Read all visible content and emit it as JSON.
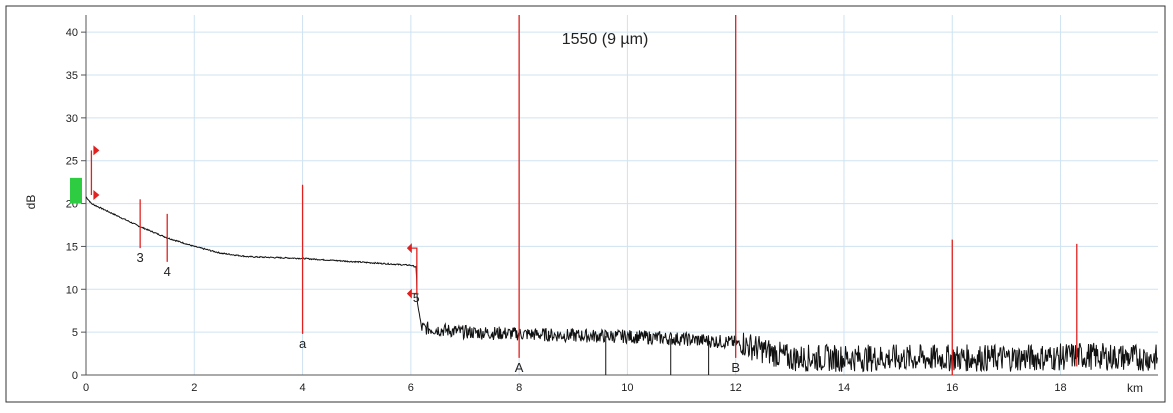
{
  "chart_data": {
    "type": "line",
    "title": "1550 (9 µm)",
    "xlabel": "",
    "x_unit": "km",
    "ylabel": "dB",
    "xlim": [
      0,
      19.8
    ],
    "ylim": [
      0,
      42
    ],
    "grid": true,
    "x_ticks": [
      0,
      2,
      4,
      6,
      8,
      10,
      12,
      14,
      16,
      18
    ],
    "y_ticks": [
      0,
      5,
      10,
      15,
      20,
      25,
      30,
      35,
      40
    ],
    "colors": {
      "trace": "#111111",
      "marker": "#e0211f",
      "grid": "#cfe3f1",
      "launch": "#2ecc40"
    },
    "series": [
      {
        "values_note": "",
        "x": [
          0.0,
          0.1,
          0.5,
          1.0,
          1.5,
          2.0,
          2.5,
          3.0,
          4.0,
          5.0,
          6.0,
          6.1,
          6.12,
          6.2,
          7.0,
          8.0,
          9.0,
          10.0,
          11.0,
          12.0,
          12.2,
          13.0,
          14.0,
          15.0,
          16.0,
          17.0,
          18.0,
          18.3,
          19.0,
          19.8
        ],
        "y": [
          20.8,
          20.0,
          18.8,
          17.3,
          16.0,
          15.0,
          14.2,
          13.8,
          13.6,
          13.2,
          12.8,
          12.6,
          8.5,
          5.5,
          5.0,
          4.8,
          4.6,
          4.5,
          4.2,
          3.8,
          3.0,
          1.5,
          1.5,
          1.5,
          1.5,
          1.5,
          1.6,
          1.8,
          1.6,
          1.5
        ]
      }
    ],
    "events": [
      {
        "label": "3",
        "x": 1.0,
        "top": 20.5,
        "bottom": 14.8
      },
      {
        "label": "4",
        "x": 1.5,
        "top": 18.8,
        "bottom": 13.2
      },
      {
        "label": "a",
        "x": 4.0,
        "top": 22.2,
        "bottom": 4.8
      },
      {
        "label": "A",
        "x": 8.0,
        "top": 42.0,
        "bottom": 2.0
      },
      {
        "label": "B",
        "x": 12.0,
        "top": 42.0,
        "bottom": 2.0
      },
      {
        "label": "",
        "x": 16.0,
        "top": 15.8,
        "bottom": 0.0
      },
      {
        "label": "",
        "x": 18.3,
        "top": 15.3,
        "bottom": 1.0
      }
    ],
    "section_label": "5",
    "section_label_x": 6.1,
    "section_label_y": 8.5,
    "section_marker": {
      "x": 6.0,
      "top": 14.8,
      "bottom": 9.5
    },
    "launch_marker": {
      "x": 0.1,
      "top": 26.2,
      "bottom": 21.0
    }
  }
}
